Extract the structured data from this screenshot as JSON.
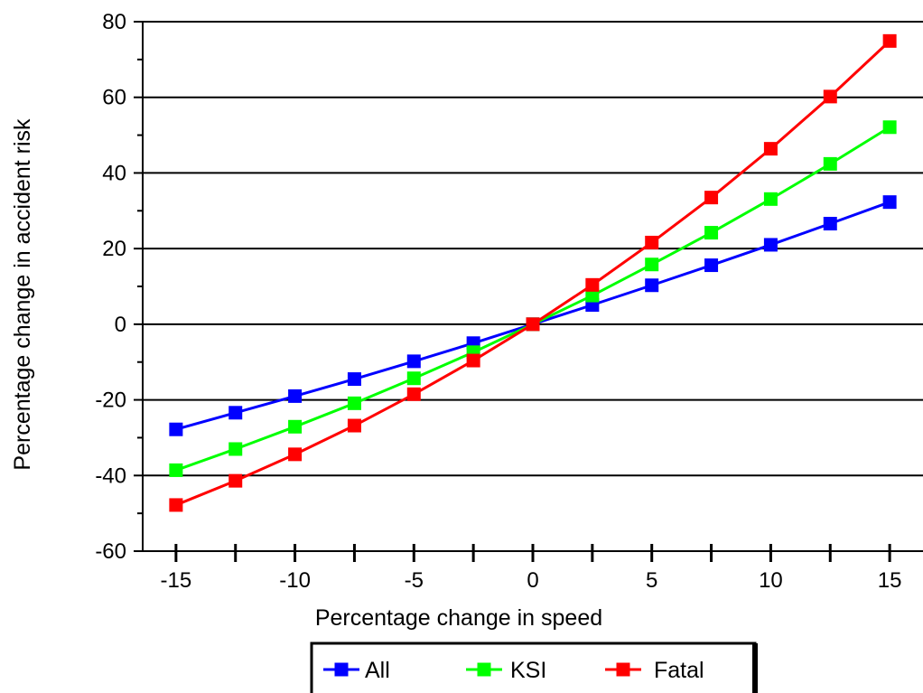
{
  "chart_data": {
    "type": "line",
    "title": "",
    "xlabel": "Percentage change in speed",
    "ylabel": "Percentage change in accident risk",
    "xlim": [
      -16.4,
      16.4
    ],
    "ylim": [
      -60,
      80
    ],
    "xticks": [
      -15,
      -10,
      -5,
      0,
      5,
      10,
      15
    ],
    "xtick_labels": [
      "-15",
      "-10",
      "-5",
      "0",
      "5",
      "10",
      "15"
    ],
    "yticks": [
      -60,
      -40,
      -20,
      0,
      20,
      40,
      60,
      80
    ],
    "ytick_labels": [
      "-60",
      "-40",
      "-20",
      "0",
      "20",
      "40",
      "60",
      "80"
    ],
    "x_minor_ticks": [
      -12.5,
      -7.5,
      -2.5,
      2.5,
      7.5,
      12.5
    ],
    "y_minor_ticks": [
      -50,
      -30,
      -10,
      10,
      30,
      50,
      70
    ],
    "grid": "horizontal major gridlines",
    "legend": "bottom-center",
    "x": [
      -15,
      -12.5,
      -10,
      -7.5,
      -5,
      -2.5,
      0,
      2.5,
      5,
      7.5,
      10,
      12.5,
      15
    ],
    "series": [
      {
        "name": "All",
        "color": "#0000ff",
        "values": [
          -27.8,
          -23.4,
          -19.0,
          -14.5,
          -9.8,
          -5.0,
          0,
          5.1,
          10.3,
          15.6,
          21.0,
          26.6,
          32.3
        ]
      },
      {
        "name": "KSI",
        "color": "#00ff00",
        "values": [
          -38.6,
          -33.0,
          -27.1,
          -20.9,
          -14.3,
          -7.4,
          0,
          7.6,
          15.8,
          24.2,
          33.1,
          42.4,
          52.1
        ]
      },
      {
        "name": "Fatal",
        "color": "#ff0000",
        "values": [
          -47.8,
          -41.4,
          -34.4,
          -26.8,
          -18.5,
          -9.6,
          0,
          10.4,
          21.6,
          33.5,
          46.4,
          60.2,
          74.9
        ]
      }
    ]
  }
}
